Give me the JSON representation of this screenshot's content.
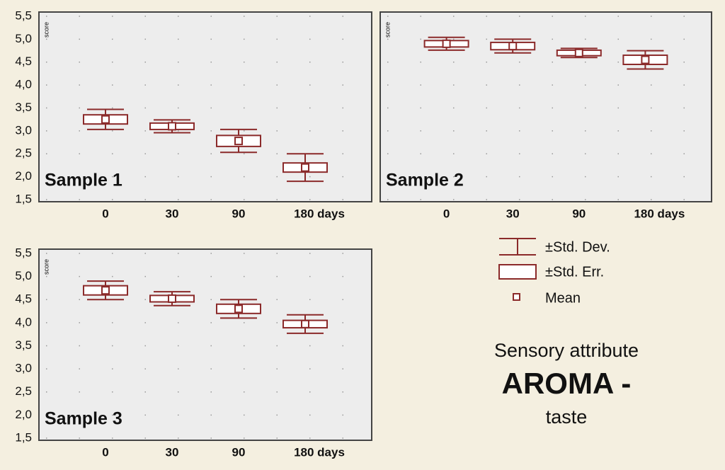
{
  "chart_data": [
    {
      "type": "box",
      "panel_label": "Sample 1",
      "ylabel": "score",
      "color": "#8b2a2a",
      "grid": true,
      "show_ytick_labels": true,
      "categories": [
        "0",
        "30",
        "90",
        "180 days"
      ],
      "series": [
        {
          "values": [
            3.25,
            3.1,
            2.78,
            2.2
          ],
          "se": [
            0.1,
            0.07,
            0.12,
            0.1
          ],
          "sd": [
            0.22,
            0.14,
            0.25,
            0.3
          ]
        }
      ],
      "ylim": [
        1.5,
        5.5
      ],
      "yticks": [
        {
          "value": 5.5,
          "label": "5,5"
        },
        {
          "value": 5,
          "label": "5,0"
        },
        {
          "value": 4.5,
          "label": "4,5"
        },
        {
          "value": 4,
          "label": "4,0"
        },
        {
          "value": 3.5,
          "label": "3,5"
        },
        {
          "value": 3,
          "label": "3,0"
        },
        {
          "value": 2.5,
          "label": "2,5"
        },
        {
          "value": 2,
          "label": "2,0"
        },
        {
          "value": 1.5,
          "label": "1,5"
        }
      ]
    },
    {
      "type": "box",
      "panel_label": "Sample 2",
      "ylabel": "score",
      "color": "#8b2a2a",
      "grid": true,
      "show_ytick_labels": false,
      "categories": [
        "0",
        "30",
        "90",
        "180 days"
      ],
      "series": [
        {
          "values": [
            4.9,
            4.85,
            4.7,
            4.55
          ],
          "se": [
            0.07,
            0.08,
            0.06,
            0.1
          ],
          "sd": [
            0.14,
            0.15,
            0.1,
            0.2
          ]
        }
      ],
      "ylim": [
        1.5,
        5.5
      ],
      "yticks": [
        5.5,
        5,
        4.5,
        4,
        3.5,
        3,
        2.5,
        2,
        1.5
      ]
    },
    {
      "type": "box",
      "panel_label": "Sample 3",
      "ylabel": "score",
      "color": "#8b2a2a",
      "grid": true,
      "show_ytick_labels": true,
      "categories": [
        "0",
        "30",
        "90",
        "180 days"
      ],
      "series": [
        {
          "values": [
            4.7,
            4.52,
            4.3,
            3.97
          ],
          "se": [
            0.1,
            0.07,
            0.1,
            0.08
          ],
          "sd": [
            0.2,
            0.15,
            0.2,
            0.2
          ]
        }
      ],
      "ylim": [
        1.5,
        5.5
      ],
      "yticks": [
        {
          "value": 5.5,
          "label": "5,5"
        },
        {
          "value": 5,
          "label": "5,0"
        },
        {
          "value": 4.5,
          "label": "4,5"
        },
        {
          "value": 4,
          "label": "4,0"
        },
        {
          "value": 3.5,
          "label": "3,5"
        },
        {
          "value": 3,
          "label": "3,0"
        },
        {
          "value": 2.5,
          "label": "2,5"
        },
        {
          "value": 2,
          "label": "2,0"
        },
        {
          "value": 1.5,
          "label": "1,5"
        }
      ]
    }
  ],
  "legend": {
    "items": [
      "±Std. Dev.",
      "±Std. Err.",
      "Mean"
    ]
  },
  "caption": {
    "lines": [
      "Sensory attribute",
      "AROMA -",
      "taste"
    ]
  }
}
